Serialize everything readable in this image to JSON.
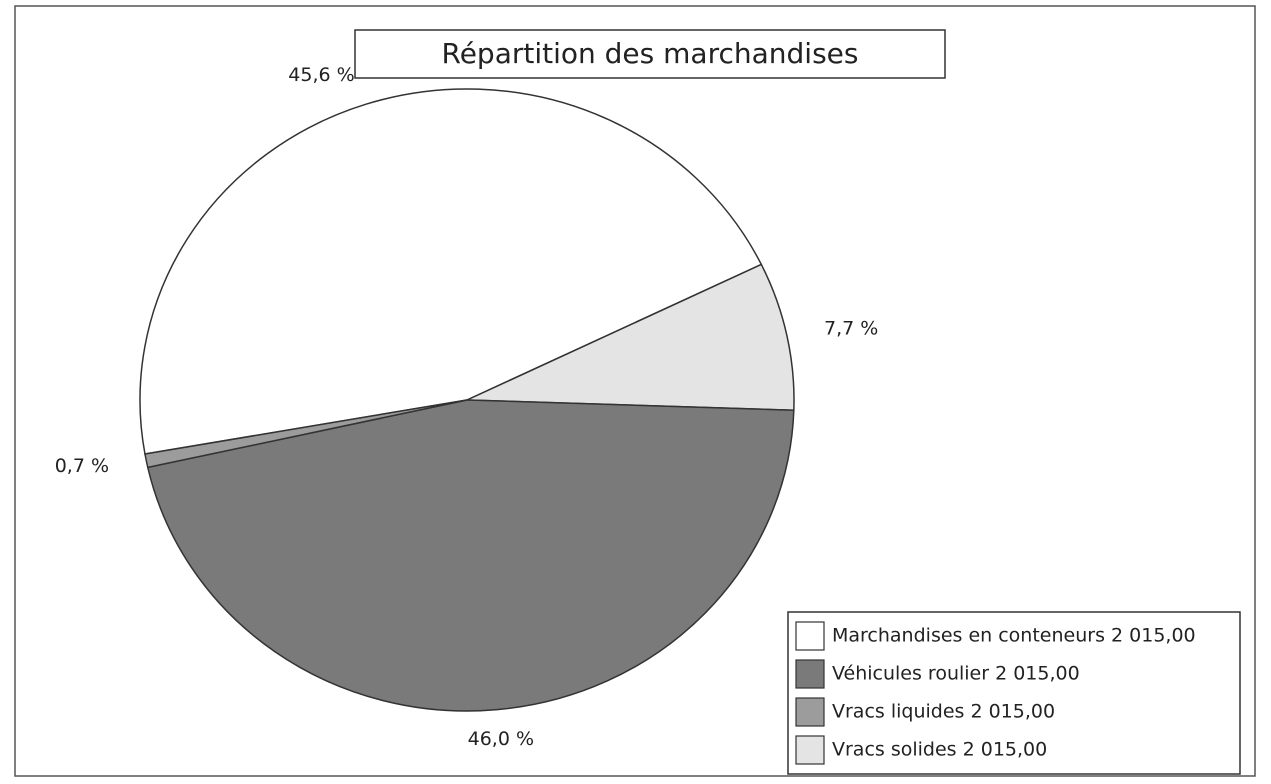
{
  "chart_data": {
    "type": "pie",
    "title": "Répartition des marchandises",
    "series": [
      {
        "name": "Marchandises en conteneurs 2 015,00",
        "color": "#ffffff"
      },
      {
        "name": "Véhicules roulier 2 015,00",
        "color": "#7a7a7a"
      },
      {
        "name": "Vracs liquides 2 015,00",
        "color": "#9c9c9c"
      },
      {
        "name": "Vracs solides 2 015,00",
        "color": "#e4e4e4"
      }
    ],
    "values": [
      45.6,
      46.0,
      0.7,
      7.7
    ],
    "value_labels": [
      "45,6 %",
      "46,0 %",
      "0,7 %",
      "7,7 %"
    ],
    "legend": "bottom-right"
  }
}
